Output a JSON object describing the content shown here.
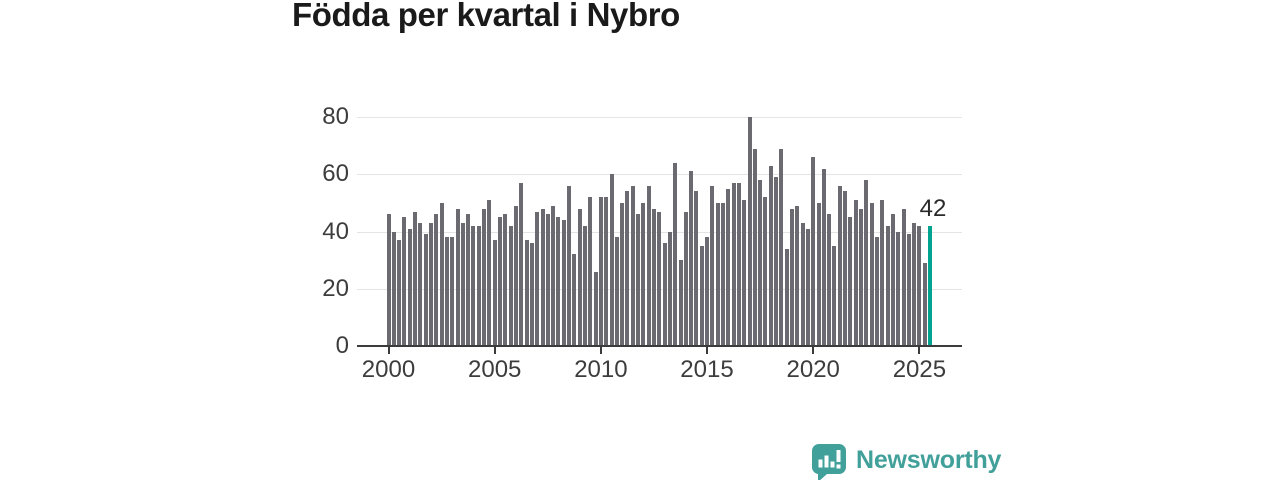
{
  "chart_data": {
    "type": "bar",
    "title": "Födda per kvartal i Nybro",
    "frequency": "quarterly",
    "x_start": "2000-Q1",
    "x_end": "2025-Q3",
    "values": [
      46,
      40,
      37,
      45,
      41,
      47,
      43,
      39,
      43,
      46,
      50,
      38,
      38,
      48,
      43,
      46,
      42,
      42,
      48,
      51,
      37,
      45,
      46,
      42,
      49,
      57,
      37,
      36,
      47,
      48,
      46,
      49,
      45,
      44,
      56,
      32,
      48,
      42,
      52,
      26,
      52,
      52,
      60,
      38,
      50,
      54,
      56,
      46,
      50,
      56,
      48,
      47,
      36,
      40,
      64,
      30,
      47,
      61,
      54,
      35,
      38,
      56,
      50,
      50,
      55,
      57,
      57,
      51,
      80,
      69,
      58,
      52,
      63,
      59,
      69,
      34,
      48,
      49,
      43,
      41,
      66,
      50,
      62,
      46,
      35,
      56,
      54,
      45,
      51,
      48,
      58,
      50,
      38,
      51,
      42,
      46,
      40,
      48,
      39,
      43,
      42,
      29,
      42
    ],
    "highlight_last": true,
    "highlight_value_label": "42",
    "xtick_indices": [
      0,
      20,
      40,
      60,
      80,
      100
    ],
    "xtick_labels": [
      "2000",
      "2005",
      "2010",
      "2015",
      "2020",
      "2025"
    ],
    "yticks": [
      0,
      20,
      40,
      60,
      80
    ],
    "ylim": [
      0,
      80
    ],
    "grid": true,
    "legend": "none",
    "bar_color": "#6a6a70",
    "highlight_color": "#00a490",
    "axis_color": "#3b3b3b",
    "gridline_color": "#e4e4e4"
  },
  "footer": {
    "logo_text": "Newsworthy"
  }
}
